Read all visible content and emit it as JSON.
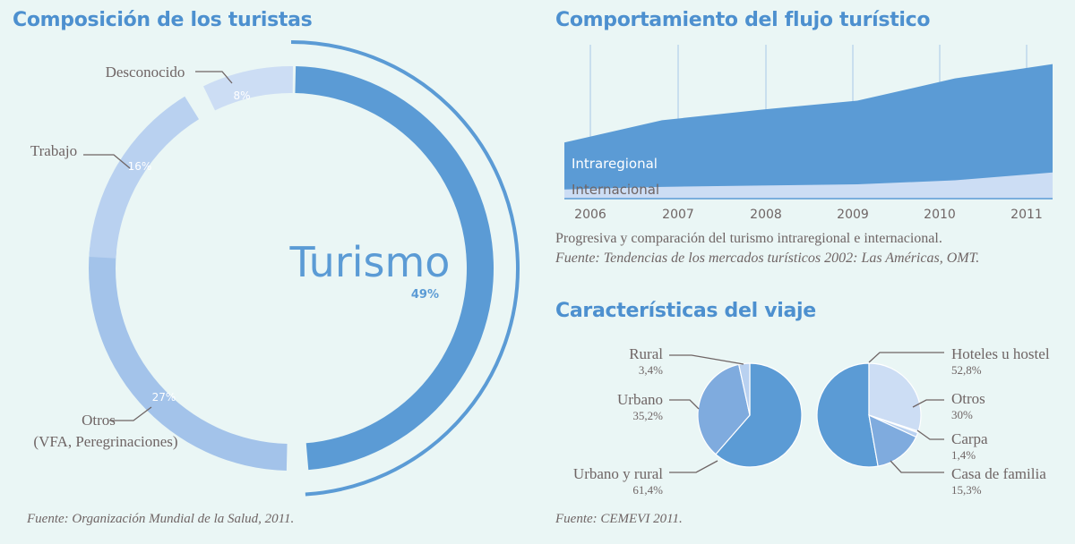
{
  "donut": {
    "title": "Composición de los turistas",
    "source": "Fuente: Organización Mundial de la Salud, 2011."
  },
  "area": {
    "title": "Comportamiento del flujo turístico",
    "caption": "Progresiva y comparación del turismo intraregional e internacional.",
    "source": "Fuente: Tendencias de los mercados turísticos 2002: Las Américas, OMT."
  },
  "pies": {
    "title": "Características del viaje",
    "source": "Fuente: CEMEVI 2011."
  },
  "colors": {
    "dark": "#5b9bd5",
    "mid": "#7fabde",
    "light": "#a3c3ea",
    "pale": "#b9d1f0",
    "palest": "#ccddf4",
    "text_gray": "#6f6565",
    "background": "#eaf6f5"
  },
  "chart_data": [
    {
      "type": "pie",
      "title": "Composición de los turistas",
      "slices": [
        {
          "label": "Turismo",
          "value": 49,
          "display": "49%"
        },
        {
          "label": "Otros\n(VFA, Peregrinaciones)",
          "value": 27,
          "display": "27%"
        },
        {
          "label": "Trabajo",
          "value": 16,
          "display": "16%"
        },
        {
          "label": "Desconocido",
          "value": 8,
          "display": "8%"
        }
      ]
    },
    {
      "type": "area",
      "title": "Comportamiento del flujo turístico",
      "x": [
        "2006",
        "2007",
        "2008",
        "2009",
        "2010",
        "2011"
      ],
      "ylim": [
        0,
        100
      ],
      "series": [
        {
          "name": "Internacional",
          "values": [
            7,
            9,
            10,
            11,
            14,
            20
          ]
        },
        {
          "name": "Intraregional",
          "values": [
            43,
            60,
            68,
            75,
            92,
            103
          ]
        }
      ]
    },
    {
      "type": "pie",
      "title": "Características del viaje",
      "slices": [
        {
          "label": "Urbano y rural",
          "value": 61.4,
          "display": "61,4%"
        },
        {
          "label": "Urbano",
          "value": 35.2,
          "display": "35,2%"
        },
        {
          "label": "Rural",
          "value": 3.4,
          "display": "3,4%"
        }
      ]
    },
    {
      "type": "pie",
      "title": "Características del viaje",
      "slices": [
        {
          "label": "Hoteles u hostel",
          "value": 52.8,
          "display": "52,8%"
        },
        {
          "label": "Casa de familia",
          "value": 15.3,
          "display": "15,3%"
        },
        {
          "label": "Carpa",
          "value": 1.4,
          "display": "1,4%"
        },
        {
          "label": "Otros",
          "value": 30,
          "display": "30%"
        }
      ]
    }
  ]
}
